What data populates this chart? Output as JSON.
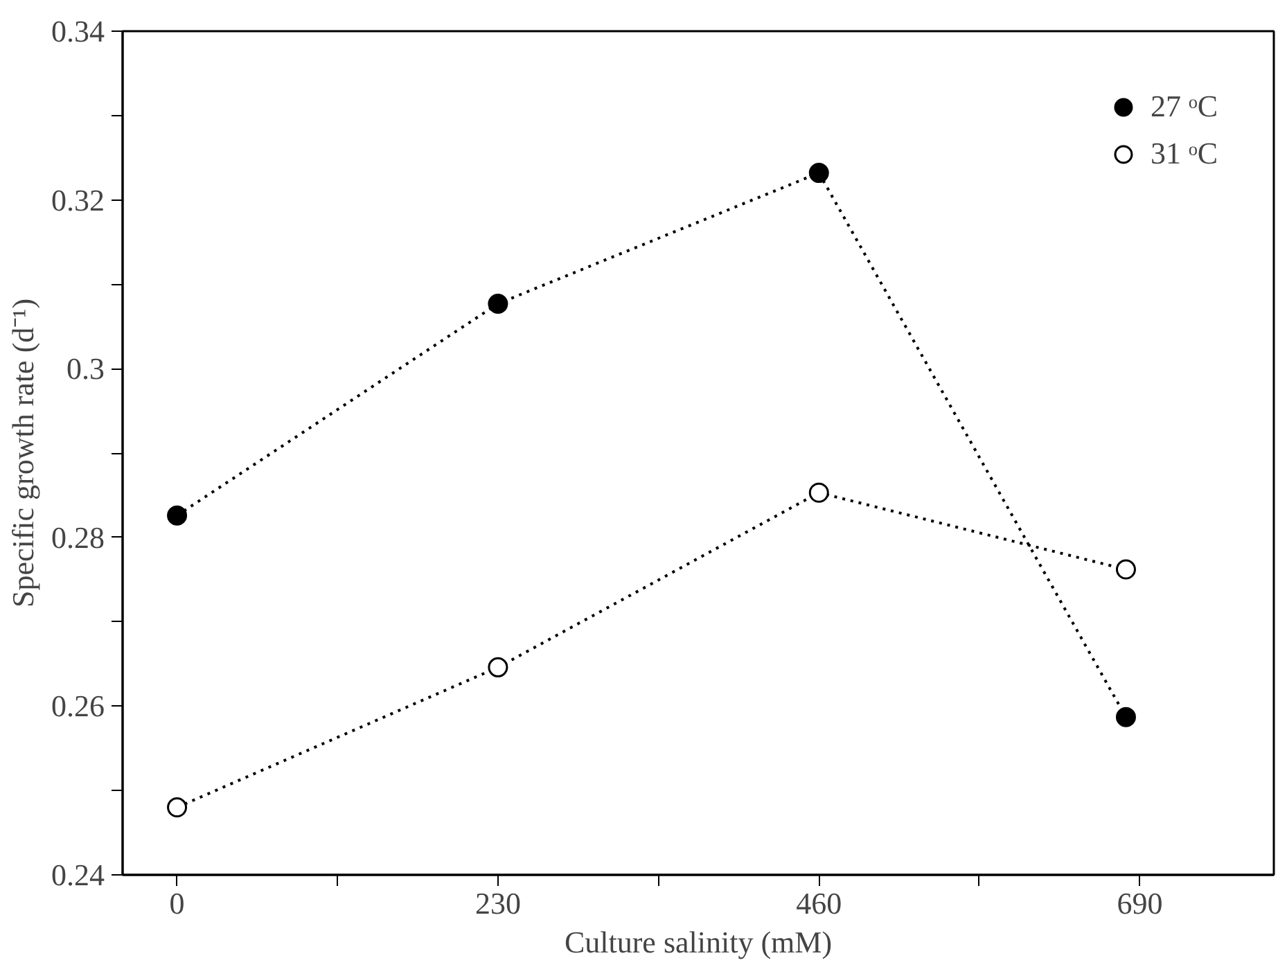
{
  "chart_data": {
    "type": "line",
    "xlabel": "Culture salinity (mM)",
    "ylabel": "Specific growth rate (d⁻¹)",
    "xlim": [
      -39,
      786
    ],
    "ylim": [
      0.24,
      0.34
    ],
    "xticks": [
      0,
      {
        "value": 115,
        "label": null
      },
      230,
      {
        "value": 345,
        "label": null
      },
      460,
      {
        "value": 575,
        "label": null
      },
      690
    ],
    "yticks": [
      0.24,
      {
        "value": 0.25,
        "label": null
      },
      0.26,
      {
        "value": 0.27,
        "label": null
      },
      0.28,
      {
        "value": 0.29,
        "label": null
      },
      {
        "value": 0.3,
        "label": "0.3"
      },
      {
        "value": 0.31,
        "label": null
      },
      0.32,
      {
        "value": 0.33,
        "label": null
      },
      0.34
    ],
    "grid": false,
    "legend": "top right",
    "marker": "circle",
    "line_style": "dotted",
    "series": [
      {
        "name": "27 ᵒC",
        "color": "#000000",
        "x": [
          0,
          230,
          460,
          680
        ],
        "values": [
          0.2826,
          0.3077,
          0.3232,
          0.2587
        ]
      },
      {
        "name": "31 ᵒC",
        "color": "#000000",
        "x": [
          0,
          230,
          460,
          680
        ],
        "values": [
          0.248,
          0.2646,
          0.2853,
          0.2762
        ]
      }
    ]
  }
}
